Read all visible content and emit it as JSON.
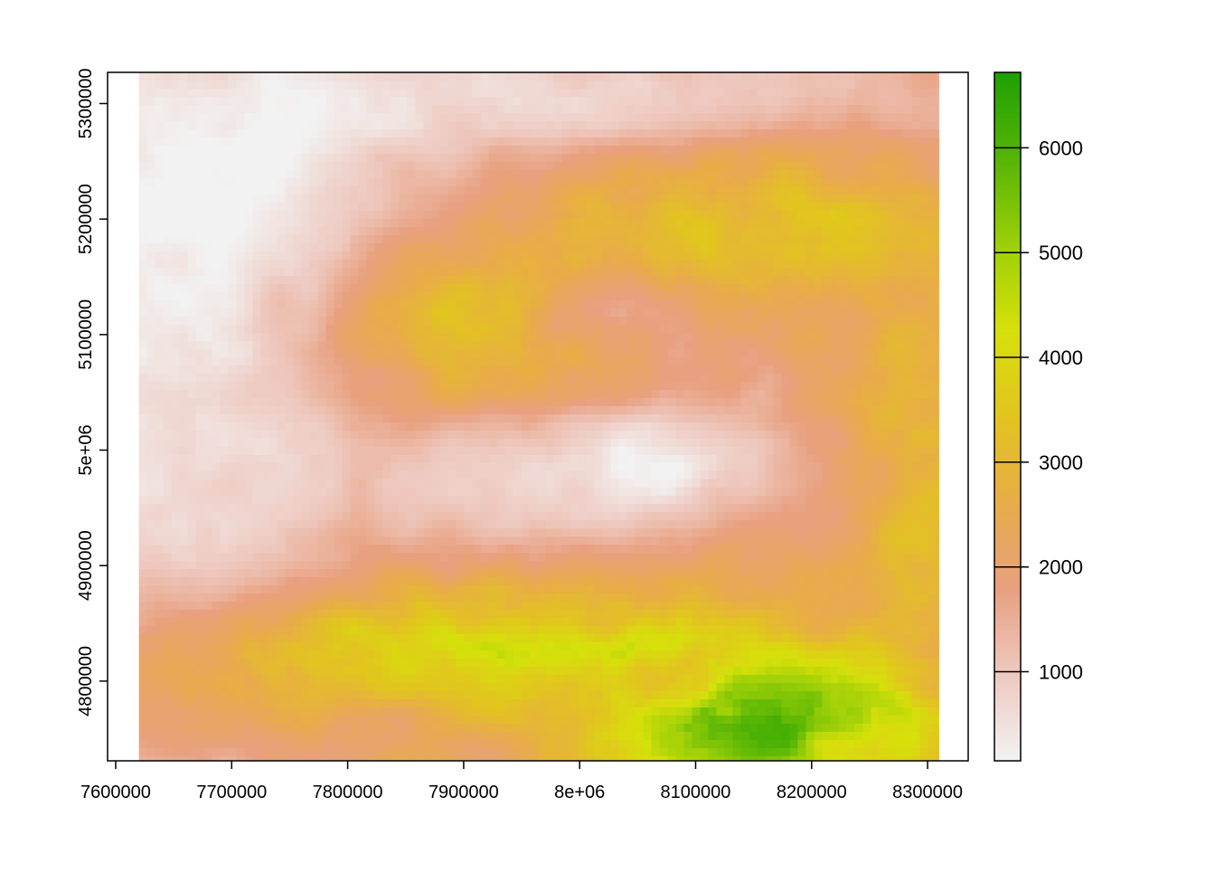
{
  "chart_data": {
    "type": "heatmap",
    "title": "",
    "xlabel": "",
    "ylabel": "",
    "xlim": [
      7593000,
      8335000
    ],
    "ylim": [
      4731000,
      5327000
    ],
    "raster_extent": {
      "xmin": 7620000,
      "xmax": 8310000,
      "ymin": 4731000,
      "ymax": 5327000
    },
    "x_ticks": [
      {
        "value": 7600000,
        "label": "7600000"
      },
      {
        "value": 7700000,
        "label": "7700000"
      },
      {
        "value": 7800000,
        "label": "7800000"
      },
      {
        "value": 7900000,
        "label": "7900000"
      },
      {
        "value": 8000000,
        "label": "8e+06"
      },
      {
        "value": 8100000,
        "label": "8100000"
      },
      {
        "value": 8200000,
        "label": "8200000"
      },
      {
        "value": 8300000,
        "label": "8300000"
      }
    ],
    "y_ticks": [
      {
        "value": 4800000,
        "label": "4800000"
      },
      {
        "value": 4900000,
        "label": "4900000"
      },
      {
        "value": 5000000,
        "label": "5e+06"
      },
      {
        "value": 5100000,
        "label": "5100000"
      },
      {
        "value": 5200000,
        "label": "5200000"
      },
      {
        "value": 5300000,
        "label": "5300000"
      }
    ],
    "legend": {
      "position": "right",
      "range": [
        150,
        6720
      ],
      "ticks": [
        {
          "value": 1000,
          "label": "1000"
        },
        {
          "value": 2000,
          "label": "2000"
        },
        {
          "value": 3000,
          "label": "3000"
        },
        {
          "value": 4000,
          "label": "4000"
        },
        {
          "value": 5000,
          "label": "5000"
        },
        {
          "value": 6000,
          "label": "6000"
        }
      ],
      "colormap": [
        "#f2f2f2",
        "#eec9c0",
        "#e8a07f",
        "#e8ac48",
        "#e2c41f",
        "#d6e00a",
        "#9ccf08",
        "#56b505",
        "#1ea003"
      ]
    },
    "grid": false
  }
}
